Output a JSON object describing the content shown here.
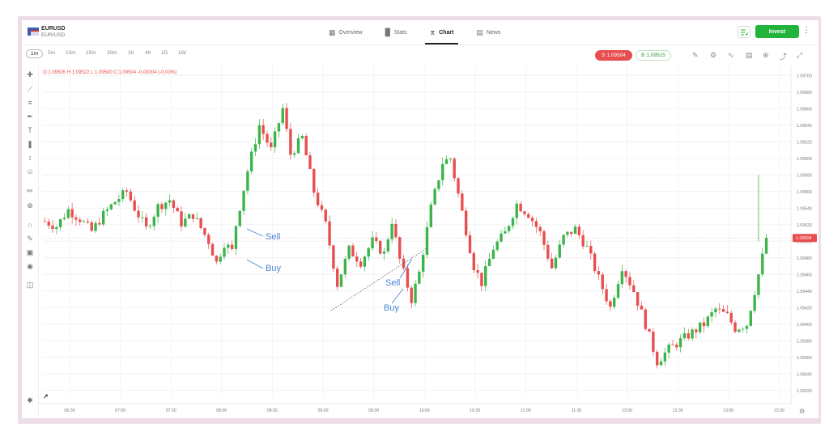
{
  "header": {
    "symbol": "EURUSD",
    "symbol_sub": "EUR/USD",
    "tabs": [
      {
        "label": "Overview",
        "icon": "grid-icon"
      },
      {
        "label": "Stats",
        "icon": "bar-stats-icon"
      },
      {
        "label": "Chart",
        "icon": "candles-icon",
        "active": true
      },
      {
        "label": "News",
        "icon": "newspaper-icon"
      }
    ],
    "invest_label": "Invest"
  },
  "toolbar": {
    "timeframes": [
      "1m",
      "5m",
      "10m",
      "15m",
      "30m",
      "1h",
      "4h",
      "1D",
      "1W"
    ],
    "active_timeframe": "1m",
    "sell_label": "S 1.09504",
    "buy_label": "B 1.09515"
  },
  "ohlc_text": "O:1.09505  H:1.09522  L:1.09500  C:1.09504  -0.00004 (-0.00%)",
  "colors": {
    "up": "#3bb54a",
    "down": "#e84e4f",
    "accent": "#22b43a",
    "annotation": "#4a86d6"
  },
  "chart_data": {
    "type": "candlestick",
    "x_ticks": [
      "06:30",
      "07:00",
      "07:30",
      "08:00",
      "08:30",
      "09:00",
      "09:30",
      "10:00",
      "10:30",
      "11:00",
      "11:30",
      "12:00",
      "12:30",
      "13:00",
      "13:30"
    ],
    "y_ticks": [
      "1.09700",
      "1.09680",
      "1.09660",
      "1.09640",
      "1.09620",
      "1.09600",
      "1.09580",
      "1.09560",
      "1.09540",
      "1.09520",
      "1.09500",
      "1.09480",
      "1.09460",
      "1.09440",
      "1.09420",
      "1.09400",
      "1.09380",
      "1.09360",
      "1.09340",
      "1.09320"
    ],
    "ylim": [
      1.09312,
      1.09712
    ],
    "current_price_label": "1.09504",
    "current_price": 1.09504,
    "close_path": [
      [
        0,
        1.09524
      ],
      [
        3,
        1.09518
      ],
      [
        6,
        1.09538
      ],
      [
        9,
        1.09527
      ],
      [
        12,
        1.09512
      ],
      [
        15,
        1.09532
      ],
      [
        18,
        1.09548
      ],
      [
        21,
        1.0956
      ],
      [
        23,
        1.0954
      ],
      [
        26,
        1.09515
      ],
      [
        29,
        1.09542
      ],
      [
        32,
        1.0955
      ],
      [
        35,
        1.09522
      ],
      [
        38,
        1.09532
      ],
      [
        42,
        1.095
      ],
      [
        44,
        1.09474
      ],
      [
        46,
        1.09498
      ],
      [
        48,
        1.09488
      ],
      [
        49,
        1.0952
      ],
      [
        52,
        1.09585
      ],
      [
        55,
        1.0964
      ],
      [
        58,
        1.0961
      ],
      [
        61,
        1.0966
      ],
      [
        63,
        1.09605
      ],
      [
        66,
        1.09625
      ],
      [
        69,
        1.0956
      ],
      [
        72,
        1.0952
      ],
      [
        75,
        1.09448
      ],
      [
        78,
        1.0949
      ],
      [
        81,
        1.09475
      ],
      [
        84,
        1.095
      ],
      [
        87,
        1.09485
      ],
      [
        89,
        1.09525
      ],
      [
        91,
        1.09478
      ],
      [
        94,
        1.0943
      ],
      [
        96,
        1.09462
      ],
      [
        99,
        1.0954
      ],
      [
        102,
        1.09595
      ],
      [
        104,
        1.096
      ],
      [
        107,
        1.09535
      ],
      [
        110,
        1.0947
      ],
      [
        112,
        1.0945
      ],
      [
        115,
        1.09492
      ],
      [
        118,
        1.0951
      ],
      [
        121,
        1.09545
      ],
      [
        124,
        1.09533
      ],
      [
        127,
        1.0951
      ],
      [
        130,
        1.09468
      ],
      [
        133,
        1.09505
      ],
      [
        136,
        1.09515
      ],
      [
        139,
        1.09492
      ],
      [
        142,
        1.09455
      ],
      [
        145,
        1.0942
      ],
      [
        148,
        1.0947
      ],
      [
        151,
        1.0944
      ],
      [
        154,
        1.094
      ],
      [
        157,
        1.09355
      ],
      [
        160,
        1.0937
      ],
      [
        163,
        1.0938
      ],
      [
        166,
        1.0939
      ],
      [
        169,
        1.094
      ],
      [
        172,
        1.09418
      ],
      [
        175,
        1.0941
      ],
      [
        177,
        1.09395
      ],
      [
        180,
        1.094
      ],
      [
        183,
        1.0946
      ],
      [
        185,
        1.09502
      ]
    ],
    "annotations": [
      {
        "text": "Sell"
      },
      {
        "text": "Buy"
      },
      {
        "text": "Sell"
      },
      {
        "text": "Buy"
      }
    ]
  }
}
